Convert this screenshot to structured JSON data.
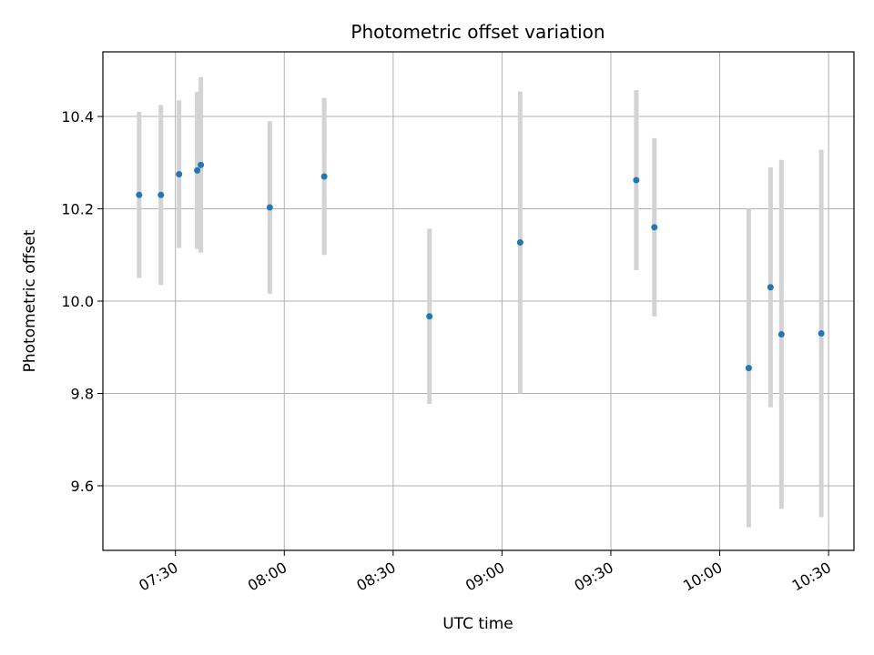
{
  "chart_data": {
    "type": "scatter",
    "title": "Photometric offset variation",
    "xlabel": "UTC time",
    "ylabel": "Photometric offset",
    "grid": true,
    "xlim": [
      "07:10",
      "10:37"
    ],
    "ylim": [
      9.46,
      10.54
    ],
    "xticks": [
      "07:30",
      "08:00",
      "08:30",
      "09:00",
      "09:30",
      "10:00",
      "10:30"
    ],
    "yticks": [
      9.6,
      9.8,
      10.0,
      10.2,
      10.4
    ],
    "colors": {
      "point": "#1f77b4",
      "errorbar": "#d3d3d3",
      "grid": "#b0b0b0"
    },
    "points": [
      {
        "time": "07:20",
        "value": 10.23,
        "error": 0.18
      },
      {
        "time": "07:26",
        "value": 10.23,
        "error": 0.195
      },
      {
        "time": "07:31",
        "value": 10.275,
        "error": 0.16
      },
      {
        "time": "07:36",
        "value": 10.283,
        "error": 0.17
      },
      {
        "time": "07:37",
        "value": 10.295,
        "error": 0.19
      },
      {
        "time": "07:56",
        "value": 10.203,
        "error": 0.187
      },
      {
        "time": "08:11",
        "value": 10.27,
        "error": 0.17
      },
      {
        "time": "08:40",
        "value": 9.967,
        "error": 0.19
      },
      {
        "time": "09:05",
        "value": 10.127,
        "error": 0.327
      },
      {
        "time": "09:37",
        "value": 10.262,
        "error": 0.195
      },
      {
        "time": "09:42",
        "value": 10.16,
        "error": 0.193
      },
      {
        "time": "10:08",
        "value": 9.855,
        "error": 0.345
      },
      {
        "time": "10:14",
        "value": 10.03,
        "error": 0.26
      },
      {
        "time": "10:17",
        "value": 9.928,
        "error": 0.378
      },
      {
        "time": "10:28",
        "value": 9.93,
        "error": 0.398
      }
    ]
  }
}
